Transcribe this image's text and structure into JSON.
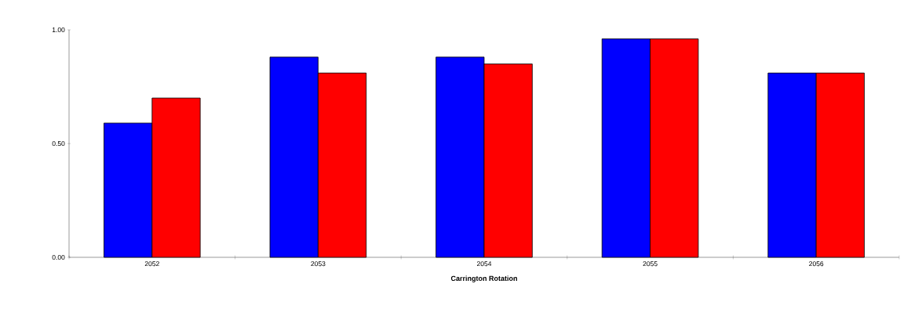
{
  "chart_data": {
    "type": "bar",
    "xlabel": "Carrington Rotation",
    "categories": [
      "2052",
      "2053",
      "2054",
      "2055",
      "2056"
    ],
    "series": [
      {
        "color": "#0000ff",
        "values": [
          0.59,
          0.88,
          0.88,
          0.96,
          0.81
        ]
      },
      {
        "color": "#ff0000",
        "values": [
          0.7,
          0.81,
          0.85,
          0.96,
          0.81
        ]
      }
    ],
    "ylim": [
      0,
      1
    ],
    "yticks": [
      {
        "value": 0,
        "label": "0.00"
      },
      {
        "value": 0.5,
        "label": "0.50"
      },
      {
        "value": 1,
        "label": "1.00"
      }
    ]
  }
}
